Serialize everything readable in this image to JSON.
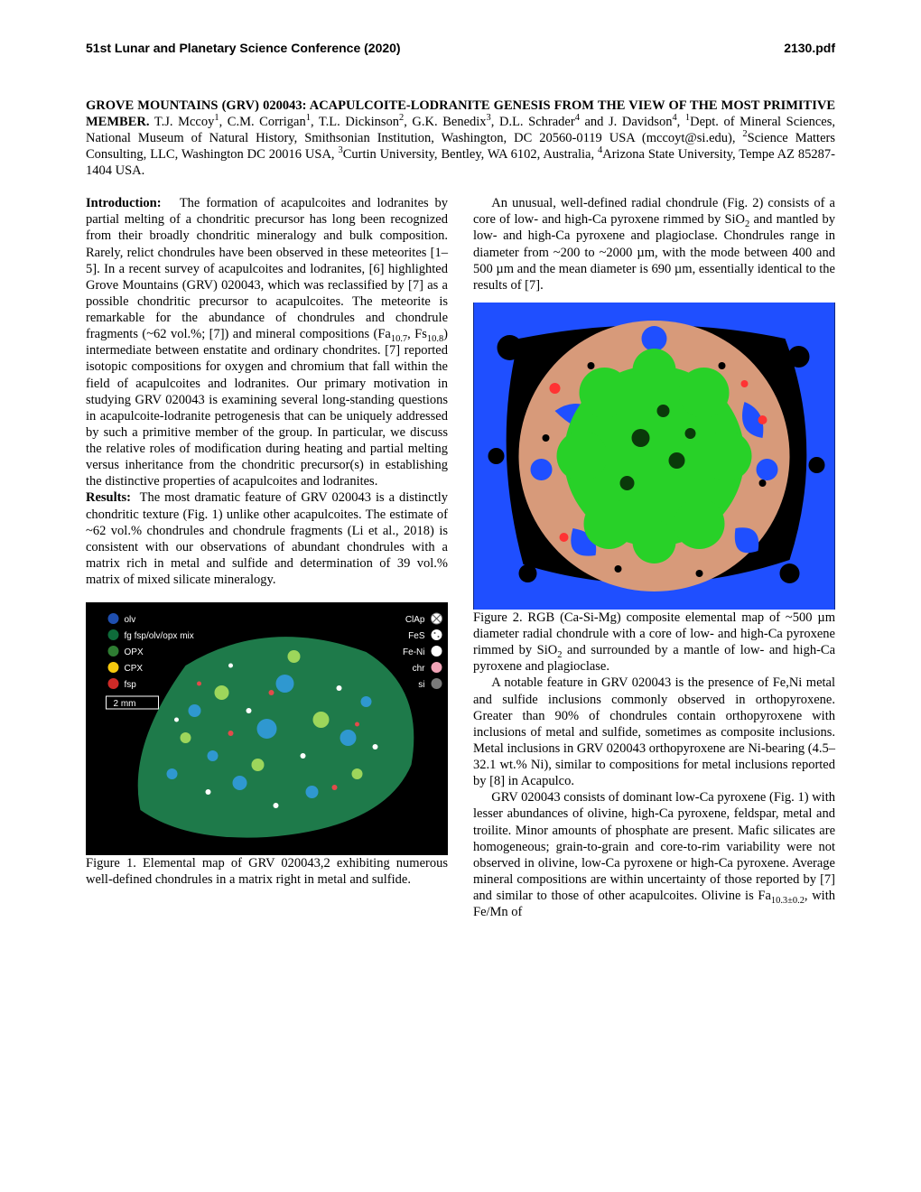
{
  "header": {
    "left": "51st Lunar and Planetary Science Conference (2020)",
    "right": "2130.pdf"
  },
  "title_block": "GROVE MOUNTAINS (GRV) 020043:  ACAPULCOITE-LODRANITE GENESIS FROM THE VIEW OF THE MOST PRIMITIVE MEMBER.",
  "authors_html": "T.J. Mccoy<sup>1</sup>, C.M. Corrigan<sup>1</sup>, T.L. Dickinson<sup>2</sup>, G.K. Benedix<sup>3</sup>, D.L. Schrader<sup>4</sup> and J. Davidson<sup>4</sup>, <sup>1</sup>Dept. of Mineral Sciences, National Museum of Natural History, Smithsonian Institution, Washington, DC  20560-0119 USA (mccoyt@si.edu), <sup>2</sup>Science Matters Consulting, LLC, Washington DC  20016 USA, <sup>3</sup>Curtin University, Bentley, WA 6102, Australia, <sup>4</sup>Arizona State University, Tempe AZ 85287-1404 USA.",
  "left_col": {
    "intro_head": "Introduction:",
    "intro_body_html": "The formation of acapulcoites and lodranites by partial melting of a chondritic precursor has long been recognized from their broadly chondritic mineralogy and bulk composition. Rarely, relict chondrules have been observed in these meteorites [1–5]. In a recent survey of acapulcoites and lodranites, [6] highlighted Grove Mountains (GRV) 020043, which was reclassified by [7] as a possible chondritic precursor to acapulcoites. The meteorite is remarkable for the abundance of chondrules and chondrule fragments (~62 vol.%; [7]) and mineral compositions (Fa<sub>10.7</sub>, Fs<sub>10.8</sub>) intermediate between enstatite and ordinary chondrites. [7] reported isotopic compositions for oxygen and chromium that fall within the field of acapulcoites and lodranites. Our primary motivation in studying GRV 020043 is examining several long-standing questions in acapulcoite-lodranite petrogenesis that can be uniquely addressed by such a primitive member of the group.  In particular, we discuss the relative roles of modification during heating and partial melting versus inheritance from the chondritic precursor(s) in establishing the distinctive properties of acapulcoites and lodranites.",
    "results_head": "Results:",
    "results_body": "The most dramatic feature of GRV 020043 is a distinctly chondritic texture (Fig. 1) unlike other acapulcoites. The estimate of ~62 vol.% chondrules and chondrule fragments (Li et al., 2018) is consistent with our observations of abundant chondrules with a matrix rich in metal and sulfide and determination of 39 vol.% matrix of mixed silicate mineralogy.",
    "fig1_caption": "Figure 1.   Elemental map of GRV 020043,2 exhibiting numerous well-defined chondrules in a matrix right in metal and sulfide."
  },
  "right_col": {
    "para1_html": "An unusual, well-defined radial chondrule (Fig. 2) consists of a core of low- and high-Ca pyroxene rimmed by SiO<sub>2</sub> and mantled by low- and high-Ca pyroxene and plagioclase. Chondrules range in diameter from ~200 to ~2000 µm, with the mode between 400 and 500 µm and the mean diameter is 690 µm, essentially identical to the results of [7].",
    "fig2_caption_html": "Figure 2.  RGB (Ca-Si-Mg) composite elemental map of ~500 µm diameter radial chondrule with a core of low- and high-Ca pyroxene rimmed by SiO<sub>2</sub> and surrounded by a mantle of low- and high-Ca pyroxene and plagioclase.",
    "para2": "A notable feature in GRV 020043 is the presence of Fe,Ni metal and sulfide inclusions commonly observed in orthopyroxene. Greater than 90% of chondrules contain orthopyroxene with inclusions of metal and sulfide, sometimes as composite inclusions. Metal inclusions in GRV 020043 orthopyroxene are Ni-bearing (4.5–32.1 wt.% Ni), similar to compositions for metal inclusions reported by [8] in Acapulco.",
    "para3_html": "GRV 020043 consists of dominant low-Ca pyroxene (Fig. 1) with lesser abundances of olivine, high-Ca pyroxene, feldspar, metal and troilite. Minor amounts of phosphate are present. Mafic silicates are homogeneous; grain-to-grain and core-to-rim variability were not observed in olivine, low-Ca pyroxene or high-Ca pyroxene. Average mineral compositions are within uncertainty of those reported by [7] and similar to those of other acapulcoites. Olivine is Fa<sub>10.3±0.2</sub>, with Fe/Mn of"
  },
  "fig1": {
    "type": "elemental-map-image",
    "background_color": "#000000",
    "scalebar": {
      "label": "2 mm",
      "color": "#ffffff"
    },
    "legend_left": [
      {
        "label": "olv",
        "color": "#1f4fb0"
      },
      {
        "label": "fg fsp/olv/opx mix",
        "color": "#0e6b3a"
      },
      {
        "label": "OPX",
        "color": "#2e7d32"
      },
      {
        "label": "CPX",
        "color": "#f6c90e"
      },
      {
        "label": "fsp",
        "color": "#cf2a27"
      }
    ],
    "legend_right": [
      {
        "label": "ClAp",
        "pattern": "hatch",
        "color": "#ffffff"
      },
      {
        "label": "FeS",
        "pattern": "dots",
        "color": "#ffffff"
      },
      {
        "label": "Fe-Ni",
        "color": "#ffffff"
      },
      {
        "label": "chr",
        "color": "#f0a3b6"
      },
      {
        "label": "si",
        "color": "#7a7a7a"
      }
    ],
    "sample_shape_fill_dominant": "#1e7a4a",
    "sample_shape_speckles": [
      "#2f98d0",
      "#e34b4b",
      "#ffffff",
      "#9dd65b"
    ]
  },
  "fig2": {
    "type": "rgb-composite-image",
    "background_color": "#000000",
    "outer_field_color": "#1f4fff",
    "mantle_color": "#d79a7a",
    "core_color": "#28d128",
    "rim_accent": "#ff3333",
    "black_speckle": "#000000"
  }
}
